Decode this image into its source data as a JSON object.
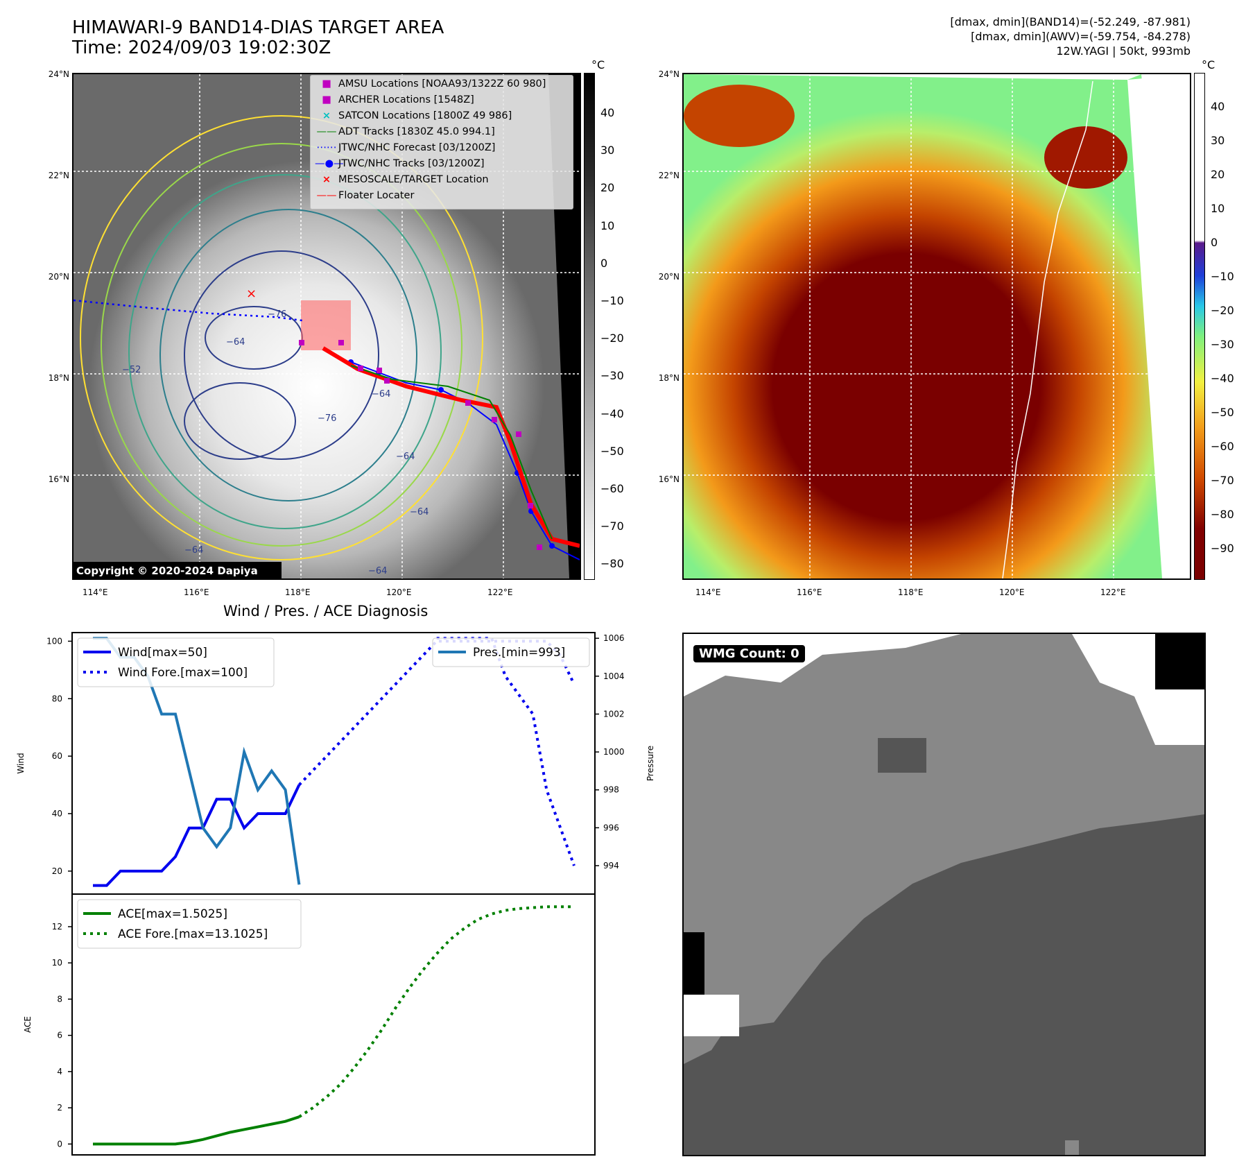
{
  "header": {
    "title": "HIMAWARI-9 BAND14-DIAS TARGET AREA",
    "time": "Time: 2024/09/03 19:02:30Z",
    "dmax_band14": "[dmax, dmin](BAND14)=(-52.249, -87.981)",
    "dmax_awv": "[dmax, dmin](AWV)=(-59.754, -84.278)",
    "storm_info": "12W.YAGI | 50kt, 993mb"
  },
  "map_axes": {
    "lat_labels": [
      "24°N",
      "22°N",
      "20°N",
      "18°N",
      "16°N"
    ],
    "lon_labels": [
      "114°E",
      "116°E",
      "118°E",
      "120°E",
      "122°E"
    ]
  },
  "ir_map": {
    "colorbar_unit": "°C",
    "colorbar_ticks": [
      "40",
      "30",
      "20",
      "10",
      "0",
      "−10",
      "−20",
      "−30",
      "−40",
      "−50",
      "−60",
      "−70",
      "−80"
    ],
    "contour_labels": [
      "−76",
      "−64",
      "−64",
      "−64",
      "−64",
      "−76",
      "−64",
      "−52",
      "−64"
    ],
    "copyright": "Copyright © 2020-2024 Dapiya",
    "legend": [
      {
        "label": "AMSU Locations [NOAA93/1322Z 60 980]",
        "symbol": "square",
        "color": "#c000c0"
      },
      {
        "label": "ARCHER Locations [1548Z]",
        "symbol": "square",
        "color": "#c000c0"
      },
      {
        "label": "SATCON Locations [1800Z 49 986]",
        "symbol": "x",
        "color": "#00c0c0"
      },
      {
        "label": "ADT Tracks [1830Z 45.0 994.1]",
        "symbol": "line",
        "color": "#008000"
      },
      {
        "label": "JTWC/NHC Forecast [03/1200Z]",
        "symbol": "dotted",
        "color": "#0000ff"
      },
      {
        "label": "JTWC/NHC Tracks [03/1200Z]",
        "symbol": "line-dot",
        "color": "#0000ff"
      },
      {
        "label": "MESOSCALE/TARGET Location",
        "symbol": "x",
        "color": "#ff0000"
      },
      {
        "label": "Floater Locater",
        "symbol": "line",
        "color": "#ff0000"
      }
    ]
  },
  "awv_map": {
    "colorbar_unit": "°C",
    "colorbar_ticks": [
      "40",
      "30",
      "20",
      "10",
      "0",
      "−10",
      "−20",
      "−30",
      "−40",
      "−50",
      "−60",
      "−70",
      "−80",
      "−90"
    ]
  },
  "wmg": {
    "count_label": "WMG Count: 0"
  },
  "chart_data": [
    {
      "type": "line",
      "title": "Wind / Pres. / ACE Diagnosis",
      "ylabel": "Wind",
      "ylabel_right": "Pressure",
      "ylim": [
        12,
        103
      ],
      "ylim_right": [
        992.5,
        1006.3
      ],
      "yticks": [
        20,
        40,
        60,
        80,
        100
      ],
      "yticks_right": [
        994,
        996,
        998,
        1000,
        1002,
        1004,
        1006
      ],
      "x": [
        0,
        1,
        2,
        3,
        4,
        5,
        6,
        7,
        8,
        9,
        10,
        11,
        12,
        13,
        14,
        15,
        16,
        17,
        18,
        19,
        20,
        21,
        22,
        23,
        24,
        25,
        26,
        27,
        28,
        29,
        30,
        31,
        32,
        33,
        34,
        35
      ],
      "series": [
        {
          "name": "Wind[max=50]",
          "axis": "left",
          "style": "solid",
          "color": "#0000ee",
          "x": [
            0,
            1,
            2,
            3,
            4,
            5,
            6,
            7,
            8,
            9,
            10,
            11,
            12,
            13,
            14,
            15
          ],
          "values": [
            15,
            15,
            20,
            20,
            20,
            20,
            25,
            35,
            35,
            45,
            45,
            35,
            40,
            40,
            40,
            50
          ]
        },
        {
          "name": "Wind Fore.[max=100]",
          "axis": "left",
          "style": "dotted",
          "color": "#0000ee",
          "x": [
            15,
            16,
            17,
            18,
            19,
            20,
            21,
            22,
            23,
            24,
            25,
            26,
            27,
            28,
            29,
            30,
            31,
            32,
            33,
            34,
            35
          ],
          "values": [
            50,
            55,
            60,
            65,
            70,
            75,
            80,
            85,
            90,
            95,
            100,
            100,
            100,
            100,
            100,
            100,
            100,
            100,
            100,
            95,
            85
          ]
        },
        {
          "name": "Pres.[min=993]",
          "axis": "right",
          "style": "solid",
          "color": "#1f77b4",
          "x": [
            0,
            1,
            2,
            3,
            4,
            5,
            6,
            7,
            8,
            9,
            10,
            11,
            12,
            13,
            14,
            15
          ],
          "values": [
            1006,
            1006,
            1005,
            1005,
            1004,
            1002,
            1002,
            999,
            996,
            995,
            996,
            1000,
            998,
            999,
            998,
            993
          ]
        },
        {
          "name": "",
          "axis": "right",
          "style": "dotted",
          "color": "#0000ee",
          "x": [
            25,
            26,
            27,
            28,
            29,
            30,
            31,
            32,
            33,
            34,
            35
          ],
          "values": [
            1006,
            1006,
            1006,
            1006,
            1006,
            1004,
            1003,
            1002,
            998,
            996,
            994
          ]
        }
      ]
    },
    {
      "type": "line",
      "ylabel": "ACE",
      "ylim": [
        -0.6,
        13.8
      ],
      "yticks": [
        0,
        2,
        4,
        6,
        8,
        10,
        12
      ],
      "series": [
        {
          "name": "ACE[max=1.5025]",
          "style": "solid",
          "color": "#008000",
          "x": [
            0,
            1,
            2,
            3,
            4,
            5,
            6,
            7,
            8,
            9,
            10,
            11,
            12,
            13,
            14,
            15
          ],
          "values": [
            0,
            0,
            0,
            0,
            0,
            0,
            0,
            0.1,
            0.25,
            0.45,
            0.65,
            0.8,
            0.95,
            1.1,
            1.25,
            1.5
          ]
        },
        {
          "name": "ACE Fore.[max=13.1025]",
          "style": "dotted",
          "color": "#008000",
          "x": [
            15,
            16,
            17,
            18,
            19,
            20,
            21,
            22,
            23,
            24,
            25,
            26,
            27,
            28,
            29,
            30,
            31,
            32,
            33,
            34,
            35
          ],
          "values": [
            1.5,
            2.0,
            2.6,
            3.3,
            4.2,
            5.2,
            6.3,
            7.5,
            8.6,
            9.6,
            10.5,
            11.3,
            11.9,
            12.4,
            12.7,
            12.9,
            13.0,
            13.05,
            13.1,
            13.1,
            13.1
          ]
        }
      ]
    }
  ]
}
